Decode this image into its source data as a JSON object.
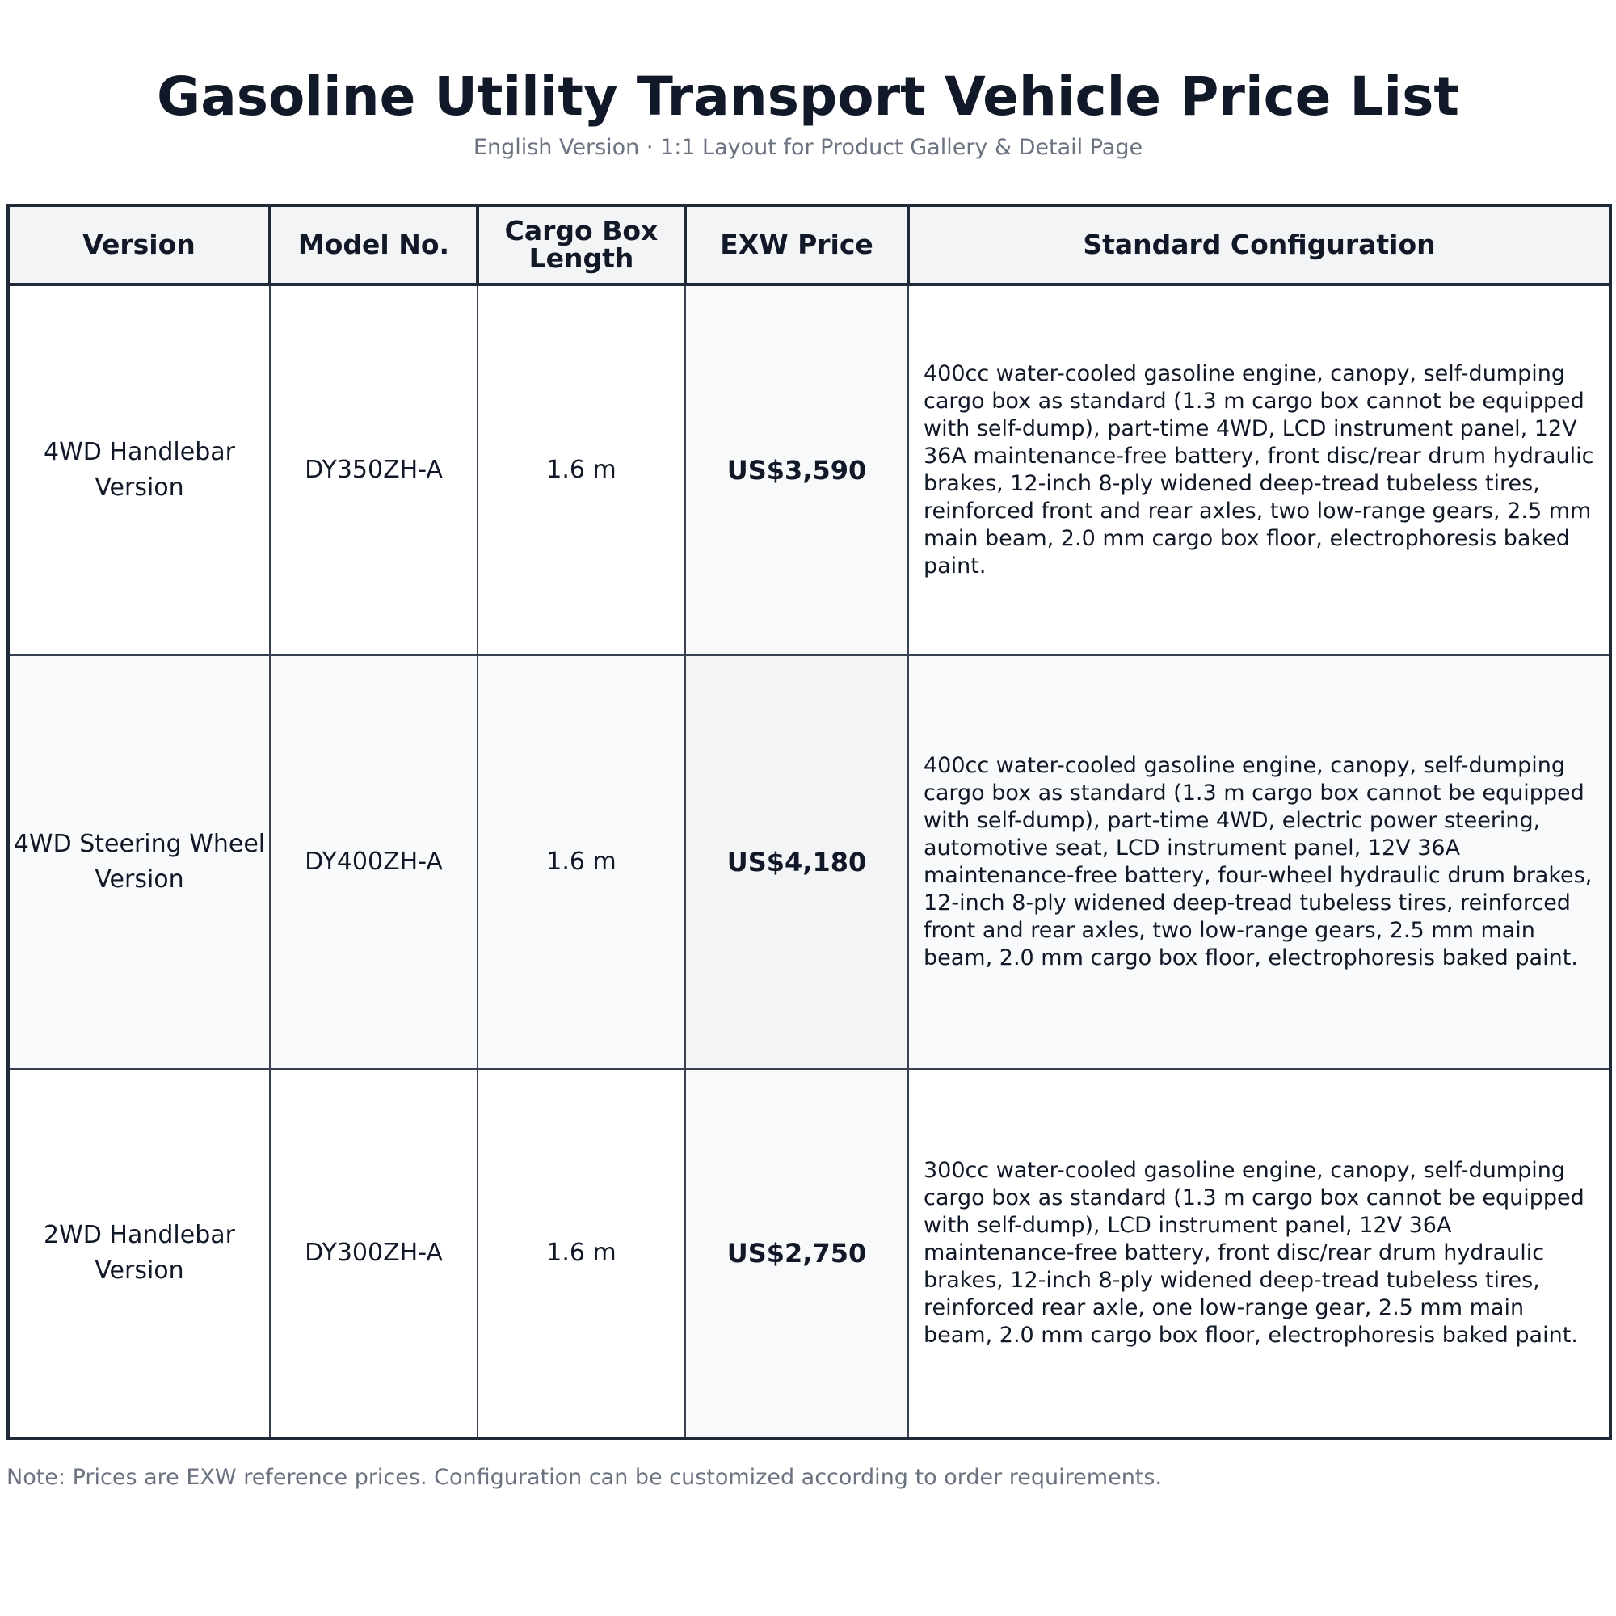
{
  "header": {
    "title": "Gasoline Utility Transport Vehicle Price List",
    "subtitle": "English Version · 1:1 Layout for Product Gallery & Detail Page"
  },
  "table": {
    "columns": [
      "Version",
      "Model No.",
      "Cargo Box Length",
      "EXW Price",
      "Standard Configuration"
    ],
    "rows": [
      {
        "version": "4WD Handlebar Version",
        "model": "DY350ZH-A",
        "length": "1.6 m",
        "price": "US$3,590",
        "config": "400cc water-cooled gasoline engine, canopy, self-dumping cargo box as standard (1.3 m cargo box cannot be equipped with self-dump), part-time 4WD, LCD instrument panel, 12V 36A maintenance-free battery, front disc/rear drum hydraulic brakes, 12-inch 8-ply widened deep-tread tubeless tires, reinforced front and rear axles, two low-range gears, 2.5 mm main beam, 2.0 mm cargo box floor, electrophoresis baked paint."
      },
      {
        "version": "4WD Steering Wheel Version",
        "model": "DY400ZH-A",
        "length": "1.6 m",
        "price": "US$4,180",
        "config": "400cc water-cooled gasoline engine, canopy, self-dumping cargo box as standard (1.3 m cargo box cannot be equipped with self-dump), part-time 4WD, electric power steering, automotive seat, LCD instrument panel, 12V 36A maintenance-free battery, four-wheel hydraulic drum brakes, 12-inch 8-ply widened deep-tread tubeless tires, reinforced front and rear axles, two low-range gears, 2.5 mm main beam, 2.0 mm cargo box floor, electrophoresis baked paint."
      },
      {
        "version": "2WD Handlebar Version",
        "model": "DY300ZH-A",
        "length": "1.6 m",
        "price": "US$2,750",
        "config": "300cc water-cooled gasoline engine, canopy, self-dumping cargo box as standard (1.3 m cargo box cannot be equipped with self-dump), LCD instrument panel, 12V 36A maintenance-free battery, front disc/rear drum hydraulic brakes, 12-inch 8-ply widened deep-tread tubeless tires, reinforced rear axle, one low-range gear, 2.5 mm main beam, 2.0 mm cargo box floor, electrophoresis baked paint."
      }
    ]
  },
  "footer": {
    "note": "Note: Prices are EXW reference prices. Configuration can be customized according to order requirements."
  },
  "colors": {
    "text": "#111827",
    "muted": "#6b7280",
    "border": "#1f2937",
    "header_bg": "#f3f4f6"
  }
}
